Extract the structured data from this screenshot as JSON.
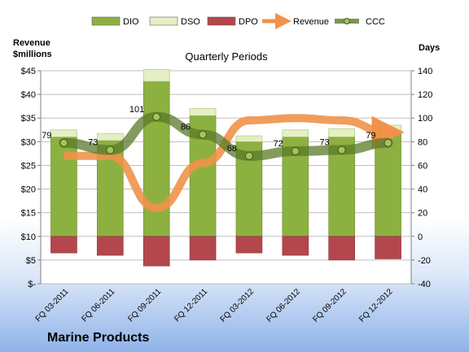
{
  "chart_data": {
    "type": "bar",
    "company": "Marine Products",
    "title": "Quarterly Periods",
    "left_axis_label_line1": "Revenue",
    "left_axis_label_line2": "$millions",
    "right_axis_label": "Days",
    "left_axis": {
      "min": 0,
      "max": 45,
      "step": 5,
      "ticks": [
        "$-",
        "$5",
        "$10",
        "$15",
        "$20",
        "$25",
        "$30",
        "$35",
        "$40",
        "$45"
      ]
    },
    "right_axis": {
      "min": -40,
      "max": 140,
      "step": 20,
      "ticks": [
        "-40",
        "-20",
        "0",
        "20",
        "40",
        "60",
        "80",
        "100",
        "120",
        "140"
      ]
    },
    "categories": [
      "FQ 03-2011",
      "FQ 06-2011",
      "FQ 09-2011",
      "FQ 12-2011",
      "FQ 03-2012",
      "FQ 06-2012",
      "FQ 09-2012",
      "FQ 12-2012"
    ],
    "legend_position": "top",
    "grid": true,
    "series": [
      {
        "name": "DIO",
        "axis": "days",
        "kind": "stacked-bar",
        "color": "#8db140",
        "values": [
          84,
          81,
          131,
          102,
          80,
          84,
          84,
          88
        ]
      },
      {
        "name": "DSO",
        "axis": "days",
        "kind": "stacked-bar",
        "color": "#e4efc4",
        "values": [
          6,
          6,
          10,
          6,
          5,
          6,
          7,
          6
        ]
      },
      {
        "name": "DPO",
        "axis": "days",
        "kind": "negative-bar",
        "color": "#b4474e",
        "values": [
          -14,
          -16,
          -25,
          -20,
          -14,
          -16,
          -20,
          -19
        ]
      },
      {
        "name": "Revenue",
        "axis": "revenue",
        "kind": "line-arrow",
        "color": "#f0924a",
        "values": [
          27,
          27,
          16,
          25.5,
          34.5,
          35,
          34.5,
          32
        ]
      },
      {
        "name": "CCC",
        "axis": "days",
        "kind": "line-marker",
        "color": "#5a7a2a",
        "values": [
          79,
          73,
          101,
          86,
          68,
          72,
          73,
          79
        ],
        "labels": [
          "79",
          "73",
          "101",
          "86",
          "68",
          "72",
          "73",
          "79"
        ]
      }
    ]
  }
}
